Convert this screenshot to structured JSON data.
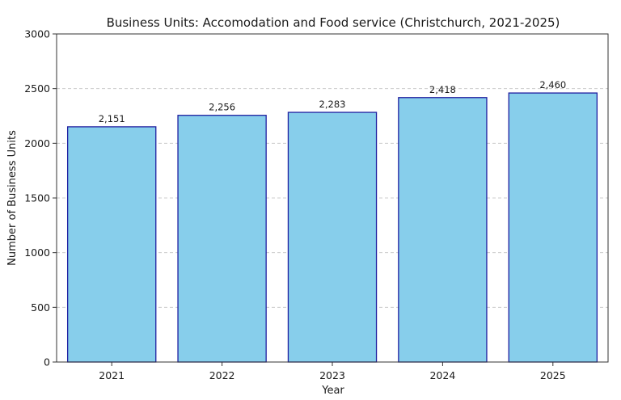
{
  "chart_data": {
    "type": "bar",
    "title": "Business Units: Accomodation and Food service (Christchurch, 2021-2025)",
    "xlabel": "Year",
    "ylabel": "Number of Business Units",
    "categories": [
      "2021",
      "2022",
      "2023",
      "2024",
      "2025"
    ],
    "values": [
      2151,
      2256,
      2283,
      2418,
      2460
    ],
    "data_labels": [
      "2,151",
      "2,256",
      "2,283",
      "2,418",
      "2,460"
    ],
    "ylim": [
      0,
      3000
    ],
    "yticks": [
      0,
      500,
      1000,
      1500,
      2000,
      2500,
      3000
    ],
    "ytick_labels": [
      "0",
      "500",
      "1000",
      "1500",
      "2000",
      "2500",
      "3000"
    ],
    "grid": "y-dashed",
    "legend": "none",
    "colors": {
      "bar_fill": "#87ceeb",
      "bar_edge": "#1f1fa0",
      "grid": "#cccccc",
      "axis": "#333333"
    }
  }
}
